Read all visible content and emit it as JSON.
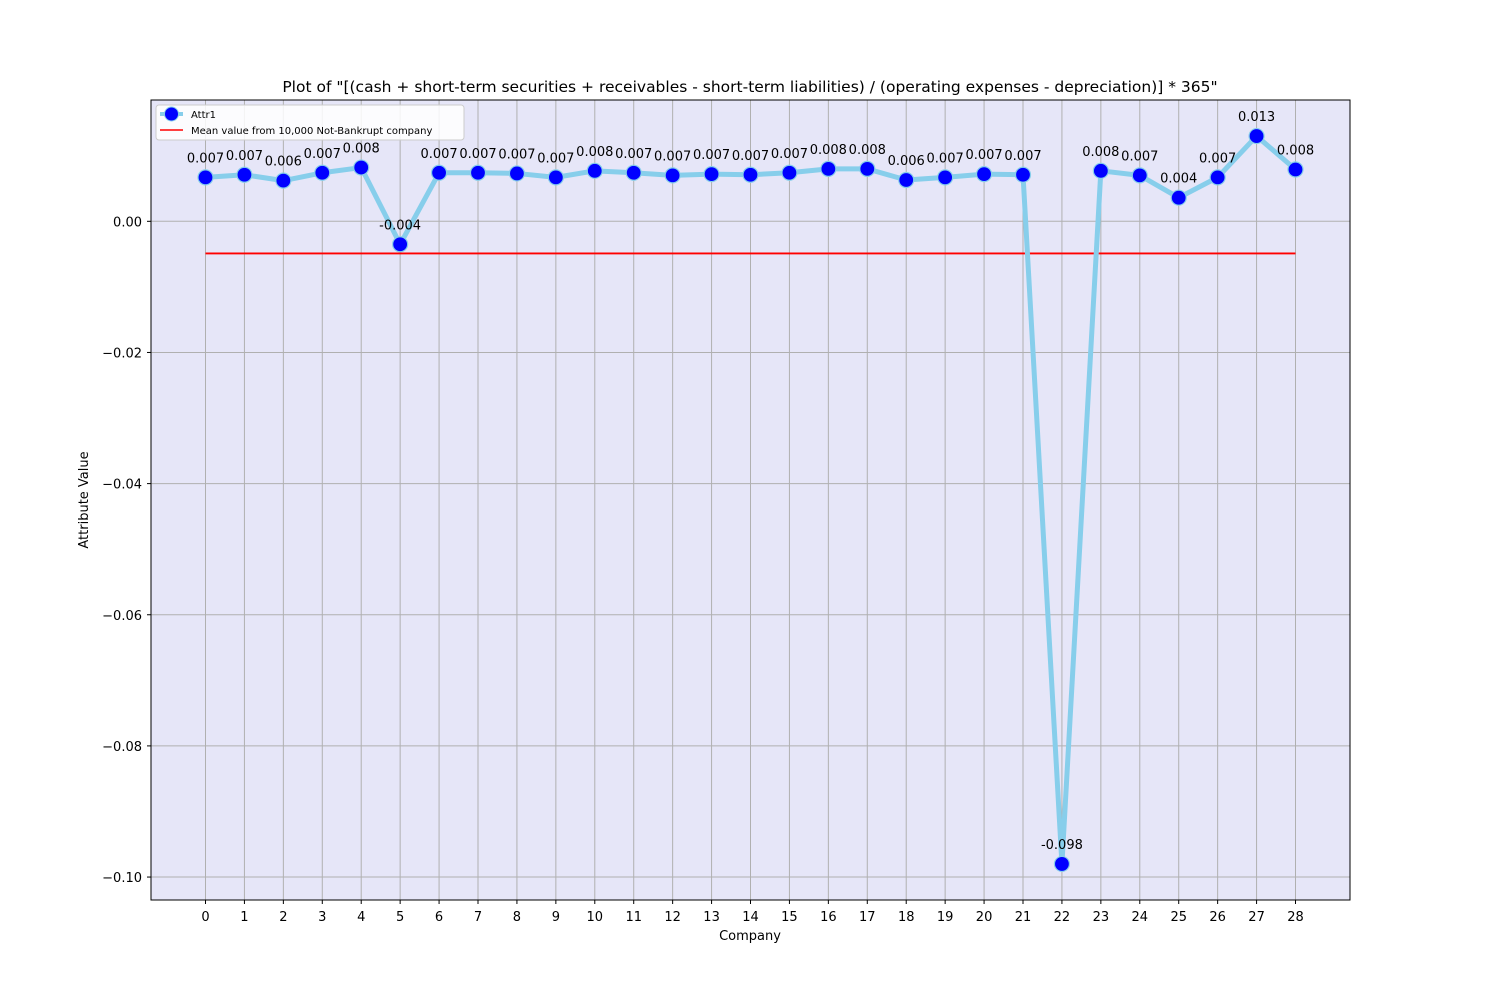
{
  "chart_data": {
    "type": "line",
    "title": "Plot of \"[(cash + short-term securities + receivables - short-term liabilities) / (operating expenses - depreciation)] * 365\"",
    "xlabel": "Company",
    "ylabel": "Attribute Value",
    "x": [
      0,
      1,
      2,
      3,
      4,
      5,
      6,
      7,
      8,
      9,
      10,
      11,
      12,
      13,
      14,
      15,
      16,
      17,
      18,
      19,
      20,
      21,
      22,
      23,
      24,
      25,
      26,
      27,
      28
    ],
    "xlim": [
      -1.4,
      29.4
    ],
    "ylim": [
      -0.1035,
      0.0185
    ],
    "yticks": [
      0.0,
      -0.02,
      -0.04,
      -0.06,
      -0.08,
      -0.1
    ],
    "ytick_labels": [
      "0.00",
      "−0.02",
      "−0.04",
      "−0.06",
      "−0.08",
      "−0.10"
    ],
    "grid": true,
    "legend_position": "top-left",
    "colors": {
      "background": "#e6e6f8",
      "line": "#87ceeb",
      "marker": "#0000ff",
      "mean_line": "#ff0000",
      "grid": "#b0b0b0"
    },
    "series": [
      {
        "name": "Attr1",
        "values": [
          0.0067,
          0.0071,
          0.0062,
          0.0074,
          0.0082,
          -0.0035,
          0.0074,
          0.0074,
          0.0073,
          0.0067,
          0.0077,
          0.0074,
          0.007,
          0.0072,
          0.0071,
          0.0074,
          0.008,
          0.008,
          0.0063,
          0.0067,
          0.0072,
          0.0071,
          -0.098,
          0.0077,
          0.007,
          0.0036,
          0.0067,
          0.013,
          0.0079
        ],
        "labels": [
          "0.007",
          "0.007",
          "0.006",
          "0.007",
          "0.008",
          "-0.004",
          "0.007",
          "0.007",
          "0.007",
          "0.007",
          "0.008",
          "0.007",
          "0.007",
          "0.007",
          "0.007",
          "0.007",
          "0.008",
          "0.008",
          "0.006",
          "0.007",
          "0.007",
          "0.007",
          "-0.098",
          "0.008",
          "0.007",
          "0.004",
          "0.007",
          "0.013",
          "0.008"
        ]
      },
      {
        "name": "Mean value from 10,000 Not-Bankrupt company",
        "x_range": [
          0,
          28
        ],
        "value": -0.0049
      }
    ]
  }
}
